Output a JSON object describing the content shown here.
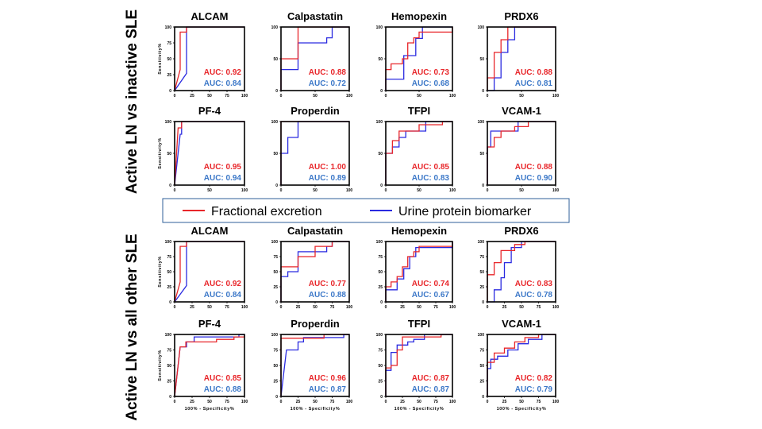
{
  "row_labels": [
    "Active LN vs inactive SLE",
    "Active LN vs all other SLE"
  ],
  "legend": {
    "red_label": "Fractional excretion",
    "blue_label": "Urine protein biomarker",
    "red_color": "#e8262a",
    "blue_color": "#2a2ae0",
    "blue_text_color": "#3c78c8"
  },
  "ylabel": "Sensitivity%",
  "xlabel": "100% - Specificity%",
  "chart_data": [
    {
      "type": "line",
      "title": "ALCAM",
      "xticks": [
        0,
        25,
        50,
        75,
        100
      ],
      "yticks": [
        0,
        25,
        50,
        75,
        100
      ],
      "auc_red": "AUC: 0.92",
      "auc_blue": "AUC: 0.84",
      "red": [
        [
          0,
          0
        ],
        [
          8,
          33
        ],
        [
          8,
          92
        ],
        [
          17,
          92
        ],
        [
          17,
          100
        ],
        [
          100,
          100
        ]
      ],
      "blue": [
        [
          0,
          0
        ],
        [
          17,
          27
        ],
        [
          17,
          100
        ],
        [
          100,
          100
        ]
      ]
    },
    {
      "type": "line",
      "title": "Calpastatin",
      "xticks": [
        0,
        50,
        100
      ],
      "yticks": [
        0,
        50,
        100
      ],
      "auc_red": "AUC: 0.88",
      "auc_blue": "AUC: 0.72",
      "red": [
        [
          0,
          0
        ],
        [
          0,
          50
        ],
        [
          25,
          50
        ],
        [
          25,
          100
        ],
        [
          100,
          100
        ]
      ],
      "blue": [
        [
          0,
          0
        ],
        [
          0,
          33
        ],
        [
          25,
          33
        ],
        [
          25,
          75
        ],
        [
          67,
          75
        ],
        [
          67,
          83
        ],
        [
          75,
          83
        ],
        [
          75,
          100
        ],
        [
          100,
          100
        ]
      ]
    },
    {
      "type": "line",
      "title": "Hemopexin",
      "xticks": [
        0,
        50,
        100
      ],
      "yticks": [
        0,
        50,
        100
      ],
      "auc_red": "AUC: 0.73",
      "auc_blue": "AUC: 0.68",
      "red": [
        [
          0,
          0
        ],
        [
          0,
          33
        ],
        [
          8,
          33
        ],
        [
          8,
          42
        ],
        [
          25,
          42
        ],
        [
          25,
          50
        ],
        [
          33,
          50
        ],
        [
          33,
          75
        ],
        [
          42,
          75
        ],
        [
          42,
          83
        ],
        [
          50,
          83
        ],
        [
          50,
          92
        ],
        [
          100,
          92
        ],
        [
          100,
          100
        ]
      ],
      "blue": [
        [
          0,
          0
        ],
        [
          0,
          18
        ],
        [
          27,
          18
        ],
        [
          27,
          55
        ],
        [
          45,
          55
        ],
        [
          45,
          82
        ],
        [
          55,
          82
        ],
        [
          55,
          100
        ],
        [
          100,
          100
        ]
      ]
    },
    {
      "type": "line",
      "title": "PRDX6",
      "xticks": [
        0,
        50,
        100
      ],
      "yticks": [
        0,
        50,
        100
      ],
      "auc_red": "AUC: 0.88",
      "auc_blue": "AUC: 0.81",
      "red": [
        [
          0,
          0
        ],
        [
          0,
          20
        ],
        [
          10,
          20
        ],
        [
          10,
          60
        ],
        [
          20,
          60
        ],
        [
          20,
          80
        ],
        [
          30,
          80
        ],
        [
          30,
          100
        ],
        [
          100,
          100
        ]
      ],
      "blue": [
        [
          0,
          0
        ],
        [
          10,
          0
        ],
        [
          10,
          20
        ],
        [
          20,
          20
        ],
        [
          20,
          60
        ],
        [
          30,
          60
        ],
        [
          30,
          80
        ],
        [
          40,
          80
        ],
        [
          40,
          100
        ],
        [
          100,
          100
        ]
      ]
    },
    {
      "type": "line",
      "title": "PF-4",
      "xticks": [
        0,
        50,
        100
      ],
      "yticks": [
        0,
        50,
        100
      ],
      "auc_red": "AUC: 0.95",
      "auc_blue": "AUC: 0.94",
      "red": [
        [
          0,
          0
        ],
        [
          5,
          90
        ],
        [
          10,
          90
        ],
        [
          10,
          100
        ],
        [
          100,
          100
        ]
      ],
      "blue": [
        [
          0,
          0
        ],
        [
          8,
          80
        ],
        [
          10,
          80
        ],
        [
          10,
          100
        ],
        [
          100,
          100
        ]
      ]
    },
    {
      "type": "line",
      "title": "Properdin",
      "xticks": [
        0,
        50,
        100
      ],
      "yticks": [
        0,
        50,
        100
      ],
      "auc_red": "AUC: 1.00",
      "auc_blue": "AUC: 0.89",
      "red": [
        [
          0,
          0
        ],
        [
          0,
          100
        ],
        [
          100,
          100
        ]
      ],
      "blue": [
        [
          0,
          0
        ],
        [
          0,
          50
        ],
        [
          10,
          50
        ],
        [
          10,
          75
        ],
        [
          25,
          75
        ],
        [
          25,
          100
        ],
        [
          100,
          100
        ]
      ]
    },
    {
      "type": "line",
      "title": "TFPI",
      "xticks": [
        0,
        50,
        100
      ],
      "yticks": [
        0,
        50,
        100
      ],
      "auc_red": "AUC: 0.85",
      "auc_blue": "AUC: 0.83",
      "red": [
        [
          0,
          0
        ],
        [
          0,
          50
        ],
        [
          10,
          50
        ],
        [
          10,
          70
        ],
        [
          20,
          70
        ],
        [
          20,
          85
        ],
        [
          50,
          85
        ],
        [
          50,
          95
        ],
        [
          85,
          95
        ],
        [
          85,
          100
        ],
        [
          100,
          100
        ]
      ],
      "blue": [
        [
          0,
          0
        ],
        [
          0,
          50
        ],
        [
          10,
          50
        ],
        [
          10,
          60
        ],
        [
          20,
          60
        ],
        [
          20,
          75
        ],
        [
          30,
          75
        ],
        [
          30,
          85
        ],
        [
          60,
          85
        ],
        [
          60,
          100
        ],
        [
          100,
          100
        ]
      ]
    },
    {
      "type": "line",
      "title": "VCAM-1",
      "xticks": [
        0,
        50,
        100
      ],
      "yticks": [
        0,
        50,
        100
      ],
      "auc_red": "AUC: 0.88",
      "auc_blue": "AUC: 0.90",
      "red": [
        [
          0,
          0
        ],
        [
          0,
          60
        ],
        [
          10,
          60
        ],
        [
          10,
          75
        ],
        [
          20,
          75
        ],
        [
          20,
          85
        ],
        [
          40,
          85
        ],
        [
          40,
          92
        ],
        [
          60,
          92
        ],
        [
          60,
          100
        ],
        [
          100,
          100
        ]
      ],
      "blue": [
        [
          0,
          0
        ],
        [
          0,
          60
        ],
        [
          5,
          60
        ],
        [
          5,
          85
        ],
        [
          45,
          85
        ],
        [
          45,
          100
        ],
        [
          100,
          100
        ]
      ]
    },
    {
      "type": "line",
      "title": "ALCAM",
      "xticks": [
        0,
        25,
        50,
        75,
        100
      ],
      "yticks": [
        0,
        25,
        50,
        75,
        100
      ],
      "auc_red": "AUC: 0.92",
      "auc_blue": "AUC: 0.84",
      "red": [
        [
          0,
          0
        ],
        [
          8,
          33
        ],
        [
          8,
          92
        ],
        [
          17,
          92
        ],
        [
          17,
          100
        ],
        [
          100,
          100
        ]
      ],
      "blue": [
        [
          0,
          0
        ],
        [
          17,
          27
        ],
        [
          17,
          100
        ],
        [
          100,
          100
        ]
      ]
    },
    {
      "type": "line",
      "title": "Calpastatin",
      "xticks": [
        0,
        25,
        50,
        75,
        100
      ],
      "yticks": [
        0,
        25,
        50,
        75,
        100
      ],
      "auc_red": "AUC: 0.77",
      "auc_blue": "AUC: 0.88",
      "red": [
        [
          0,
          0
        ],
        [
          0,
          58
        ],
        [
          25,
          58
        ],
        [
          25,
          75
        ],
        [
          50,
          75
        ],
        [
          50,
          92
        ],
        [
          75,
          92
        ],
        [
          75,
          100
        ],
        [
          100,
          100
        ]
      ],
      "blue": [
        [
          0,
          0
        ],
        [
          0,
          42
        ],
        [
          10,
          42
        ],
        [
          10,
          50
        ],
        [
          25,
          50
        ],
        [
          25,
          83
        ],
        [
          67,
          83
        ],
        [
          67,
          92
        ],
        [
          75,
          92
        ],
        [
          75,
          100
        ],
        [
          100,
          100
        ]
      ]
    },
    {
      "type": "line",
      "title": "Hemopexin",
      "xticks": [
        0,
        25,
        50,
        75,
        100
      ],
      "yticks": [
        0,
        25,
        50,
        75,
        100
      ],
      "auc_red": "AUC: 0.74",
      "auc_blue": "AUC: 0.67",
      "red": [
        [
          0,
          0
        ],
        [
          0,
          25
        ],
        [
          8,
          25
        ],
        [
          8,
          33
        ],
        [
          17,
          33
        ],
        [
          17,
          42
        ],
        [
          25,
          42
        ],
        [
          25,
          58
        ],
        [
          33,
          58
        ],
        [
          33,
          75
        ],
        [
          42,
          75
        ],
        [
          42,
          83
        ],
        [
          50,
          83
        ],
        [
          50,
          92
        ],
        [
          100,
          92
        ],
        [
          100,
          100
        ]
      ],
      "blue": [
        [
          0,
          0
        ],
        [
          0,
          20
        ],
        [
          17,
          20
        ],
        [
          17,
          38
        ],
        [
          27,
          38
        ],
        [
          27,
          55
        ],
        [
          36,
          55
        ],
        [
          36,
          75
        ],
        [
          45,
          75
        ],
        [
          45,
          90
        ],
        [
          100,
          90
        ],
        [
          100,
          100
        ]
      ]
    },
    {
      "type": "line",
      "title": "PRDX6",
      "xticks": [
        0,
        25,
        50,
        75,
        100
      ],
      "yticks": [
        0,
        25,
        50,
        75,
        100
      ],
      "auc_red": "AUC: 0.83",
      "auc_blue": "AUC: 0.78",
      "red": [
        [
          0,
          0
        ],
        [
          0,
          45
        ],
        [
          10,
          45
        ],
        [
          10,
          65
        ],
        [
          20,
          65
        ],
        [
          20,
          85
        ],
        [
          40,
          85
        ],
        [
          40,
          95
        ],
        [
          55,
          95
        ],
        [
          55,
          100
        ],
        [
          100,
          100
        ]
      ],
      "blue": [
        [
          0,
          0
        ],
        [
          10,
          0
        ],
        [
          10,
          20
        ],
        [
          20,
          20
        ],
        [
          20,
          40
        ],
        [
          25,
          40
        ],
        [
          25,
          65
        ],
        [
          35,
          65
        ],
        [
          35,
          90
        ],
        [
          50,
          90
        ],
        [
          50,
          100
        ],
        [
          100,
          100
        ]
      ]
    },
    {
      "type": "line",
      "title": "PF-4",
      "xticks": [
        0,
        25,
        50,
        75,
        100
      ],
      "yticks": [
        0,
        25,
        50,
        75,
        100
      ],
      "auc_red": "AUC: 0.85",
      "auc_blue": "AUC: 0.88",
      "red": [
        [
          0,
          0
        ],
        [
          8,
          80
        ],
        [
          16,
          80
        ],
        [
          16,
          88
        ],
        [
          60,
          88
        ],
        [
          60,
          92
        ],
        [
          85,
          92
        ],
        [
          85,
          96
        ],
        [
          100,
          96
        ],
        [
          100,
          100
        ]
      ],
      "blue": [
        [
          0,
          0
        ],
        [
          8,
          80
        ],
        [
          17,
          80
        ],
        [
          17,
          88
        ],
        [
          28,
          88
        ],
        [
          28,
          96
        ],
        [
          92,
          96
        ],
        [
          92,
          100
        ],
        [
          100,
          100
        ]
      ]
    },
    {
      "type": "line",
      "title": "Properdin",
      "xticks": [
        0,
        25,
        50,
        75,
        100
      ],
      "yticks": [
        0,
        25,
        50,
        75,
        100
      ],
      "auc_red": "AUC: 0.96",
      "auc_blue": "AUC: 0.87",
      "red": [
        [
          0,
          0
        ],
        [
          0,
          94
        ],
        [
          63,
          94
        ],
        [
          63,
          100
        ],
        [
          100,
          100
        ]
      ],
      "blue": [
        [
          0,
          0
        ],
        [
          8,
          75
        ],
        [
          25,
          75
        ],
        [
          25,
          88
        ],
        [
          33,
          88
        ],
        [
          33,
          95
        ],
        [
          92,
          95
        ],
        [
          92,
          100
        ],
        [
          100,
          100
        ]
      ]
    },
    {
      "type": "line",
      "title": "TFPI",
      "xticks": [
        0,
        25,
        50,
        75,
        100
      ],
      "yticks": [
        0,
        25,
        50,
        75,
        100
      ],
      "auc_red": "AUC: 0.87",
      "auc_blue": "AUC: 0.87",
      "red": [
        [
          0,
          0
        ],
        [
          0,
          46
        ],
        [
          8,
          46
        ],
        [
          8,
          50
        ],
        [
          17,
          50
        ],
        [
          17,
          75
        ],
        [
          25,
          75
        ],
        [
          25,
          96
        ],
        [
          83,
          96
        ],
        [
          83,
          100
        ],
        [
          100,
          100
        ]
      ],
      "blue": [
        [
          0,
          0
        ],
        [
          0,
          42
        ],
        [
          8,
          42
        ],
        [
          8,
          71
        ],
        [
          17,
          71
        ],
        [
          17,
          83
        ],
        [
          33,
          83
        ],
        [
          33,
          88
        ],
        [
          42,
          88
        ],
        [
          42,
          92
        ],
        [
          58,
          92
        ],
        [
          58,
          100
        ],
        [
          100,
          100
        ]
      ]
    },
    {
      "type": "line",
      "title": "VCAM-1",
      "xticks": [
        0,
        25,
        50,
        75,
        100
      ],
      "yticks": [
        0,
        25,
        50,
        75,
        100
      ],
      "auc_red": "AUC: 0.82",
      "auc_blue": "AUC: 0.79",
      "red": [
        [
          0,
          0
        ],
        [
          0,
          55
        ],
        [
          10,
          55
        ],
        [
          10,
          70
        ],
        [
          25,
          70
        ],
        [
          25,
          78
        ],
        [
          40,
          78
        ],
        [
          40,
          88
        ],
        [
          55,
          88
        ],
        [
          55,
          95
        ],
        [
          75,
          95
        ],
        [
          75,
          100
        ],
        [
          100,
          100
        ]
      ],
      "blue": [
        [
          0,
          0
        ],
        [
          0,
          45
        ],
        [
          5,
          45
        ],
        [
          5,
          60
        ],
        [
          15,
          60
        ],
        [
          15,
          65
        ],
        [
          30,
          65
        ],
        [
          30,
          75
        ],
        [
          45,
          75
        ],
        [
          45,
          85
        ],
        [
          60,
          85
        ],
        [
          60,
          92
        ],
        [
          80,
          92
        ],
        [
          80,
          100
        ],
        [
          100,
          100
        ]
      ]
    }
  ]
}
